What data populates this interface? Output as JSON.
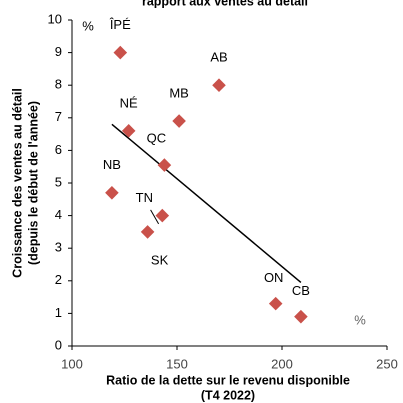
{
  "chart_data": {
    "type": "scatter",
    "title": "rapport aux ventes au détail",
    "x_label": [
      "Ratio de la dette sur le revenu disponible",
      "(T4 2022)"
    ],
    "y_label": [
      "Croissance des ventes au détail",
      "(depuis le début de l'année)"
    ],
    "y_unit": "%",
    "x_unit": "%",
    "labels": [
      "ÎPÉ",
      "AB",
      "MB",
      "NÉ",
      "QC",
      "NB",
      "TN",
      "SK",
      "ON",
      "CB"
    ],
    "x": [
      123,
      170,
      151,
      127,
      144,
      119,
      143,
      136,
      197,
      209
    ],
    "values": [
      9.0,
      8.0,
      6.9,
      6.6,
      5.55,
      4.7,
      4.0,
      3.5,
      1.3,
      0.9
    ],
    "color": "#c9514a",
    "trendline": {
      "x": [
        119,
        209
      ],
      "y": [
        6.8,
        1.95
      ]
    },
    "xlim": [
      100,
      250
    ],
    "xticks": [
      100,
      150,
      200,
      250
    ],
    "ylim": [
      0,
      10
    ],
    "yticks": [
      0,
      1,
      2,
      3,
      4,
      5,
      6,
      7,
      8,
      9,
      10
    ]
  }
}
